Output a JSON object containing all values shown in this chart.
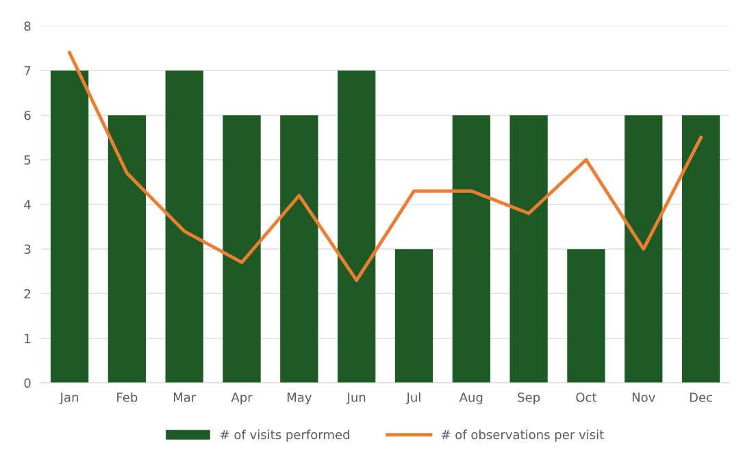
{
  "chart_data": {
    "type": "bar",
    "categories": [
      "Jan",
      "Feb",
      "Mar",
      "Apr",
      "May",
      "Jun",
      "Jul",
      "Aug",
      "Sep",
      "Oct",
      "Nov",
      "Dec"
    ],
    "series": [
      {
        "name": "# of visits performed",
        "color": "#1e5b24",
        "values": [
          7,
          6,
          7,
          6,
          6,
          7,
          3,
          6,
          6,
          3,
          6,
          6
        ]
      },
      {
        "name": "# of observations per visit",
        "type": "line",
        "color": "#ed7d31",
        "values": [
          7.4,
          4.7,
          3.4,
          2.7,
          4.2,
          2.3,
          4.3,
          4.3,
          3.8,
          5.0,
          3.0,
          5.5
        ]
      }
    ],
    "ylim": [
      0,
      8
    ],
    "yticks": [
      0,
      1,
      2,
      3,
      4,
      5,
      6,
      7,
      8
    ],
    "grid": "y",
    "legend": "bottom",
    "marker": "none",
    "line_style": "solid"
  }
}
